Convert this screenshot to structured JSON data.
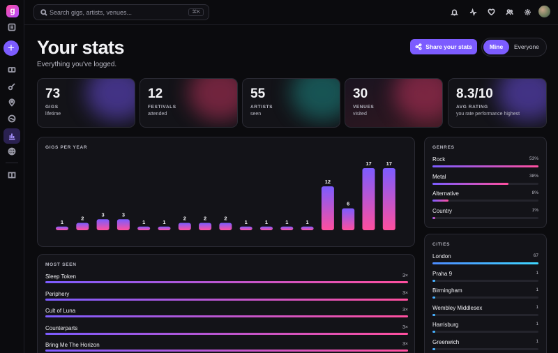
{
  "app": {
    "logo_letter": "g"
  },
  "search": {
    "placeholder": "Search gigs, artists, venues...",
    "shortcut": "⌘K"
  },
  "sidebar": {
    "icons": [
      "feed-icon",
      "ticket-icon",
      "guitar-icon",
      "venue-pin-icon",
      "vinyl-icon",
      "stats-icon",
      "globe-icon",
      "book-icon"
    ],
    "active": "stats-icon"
  },
  "topbar": {
    "icons": [
      "bell-icon",
      "activity-icon",
      "heart-icon",
      "users-icon",
      "gear-icon"
    ]
  },
  "header": {
    "title": "Your stats",
    "subtitle": "Everything you've logged.",
    "share_label": "Share your stats",
    "toggle": {
      "mine": "Mine",
      "everyone": "Everyone",
      "selected": "Mine"
    }
  },
  "stats": [
    {
      "value": "73",
      "label": "GIGS",
      "sub": "lifetime",
      "glow": "#6b4fe0"
    },
    {
      "value": "12",
      "label": "FESTIVALS",
      "sub": "attended",
      "glow": "#c0345e"
    },
    {
      "value": "55",
      "label": "ARTISTS",
      "sub": "seen",
      "glow": "#1d8a86"
    },
    {
      "value": "30",
      "label": "VENUES",
      "sub": "visited",
      "glow": "#c0345e"
    },
    {
      "value": "8.3/10",
      "label": "AVG RATING",
      "sub": "you rate performance highest",
      "glow": "#6b4fe0"
    }
  ],
  "chart_data": {
    "type": "bar",
    "title": "GIGS PER YEAR",
    "values": [
      1,
      2,
      3,
      3,
      1,
      1,
      2,
      2,
      2,
      1,
      1,
      1,
      1,
      12,
      6,
      17,
      17
    ],
    "data_labels": [
      "1",
      "2",
      "3",
      "3",
      "1",
      "1",
      "2",
      "2",
      "2",
      "1",
      "1",
      "1",
      "1",
      "12",
      "6",
      "17",
      "17"
    ],
    "ylim": [
      0,
      17
    ],
    "grid": false,
    "gradient": [
      "#7c5cff",
      "#ff4f9e"
    ]
  },
  "most_seen": {
    "title": "MOST SEEN",
    "items": [
      {
        "name": "Sleep Token",
        "count": "3×",
        "fraction": 1.0
      },
      {
        "name": "Periphery",
        "count": "3×",
        "fraction": 1.0
      },
      {
        "name": "Cult of Luna",
        "count": "3×",
        "fraction": 1.0
      },
      {
        "name": "Counterparts",
        "count": "3×",
        "fraction": 1.0
      },
      {
        "name": "Bring Me The Horizon",
        "count": "3×",
        "fraction": 1.0
      }
    ]
  },
  "genres": {
    "title": "GENRES",
    "items": [
      {
        "name": "Rock",
        "value": "53%",
        "fraction": 1.0
      },
      {
        "name": "Metal",
        "value": "38%",
        "fraction": 0.72
      },
      {
        "name": "Alternative",
        "value": "8%",
        "fraction": 0.15
      },
      {
        "name": "Country",
        "value": "1%",
        "fraction": 0.02
      }
    ]
  },
  "cities": {
    "title": "CITIES",
    "items": [
      {
        "name": "London",
        "value": "67",
        "fraction": 1.0
      },
      {
        "name": "Praha 9",
        "value": "1",
        "fraction": 0.015
      },
      {
        "name": "Birmingham",
        "value": "1",
        "fraction": 0.015
      },
      {
        "name": "Wembley Middlesex",
        "value": "1",
        "fraction": 0.015
      },
      {
        "name": "Harrisburg",
        "value": "1",
        "fraction": 0.015
      },
      {
        "name": "Greenwich",
        "value": "1",
        "fraction": 0.015
      }
    ]
  }
}
